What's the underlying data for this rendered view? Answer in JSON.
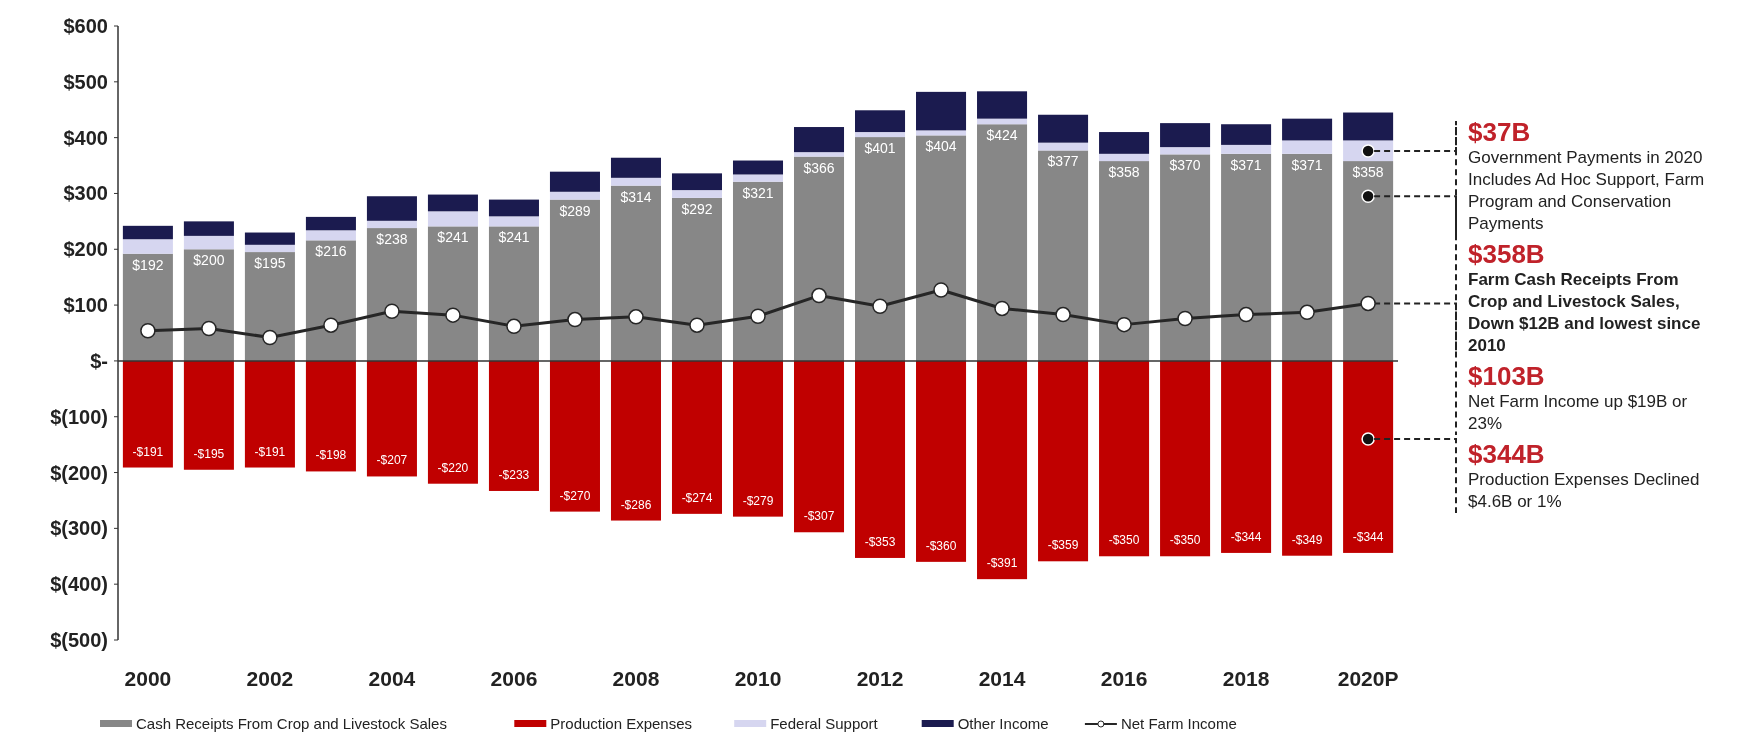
{
  "chart_data": {
    "type": "bar",
    "stacked": true,
    "categories": [
      "2000",
      null,
      "2002",
      null,
      "2004",
      null,
      "2006",
      null,
      "2008",
      null,
      "2010",
      null,
      "2012",
      null,
      "2014",
      null,
      "2016",
      null,
      "2018",
      null,
      "2020P"
    ],
    "series": [
      {
        "name": "Cash Receipts From Crop and Livestock Sales",
        "color": "#878787",
        "values": [
          192,
          200,
          195,
          216,
          238,
          241,
          241,
          289,
          314,
          292,
          321,
          366,
          401,
          404,
          424,
          377,
          358,
          370,
          371,
          371,
          358
        ],
        "value_labels": [
          "$192",
          "$200",
          "$195",
          "$216",
          "$238",
          "$241",
          "$241",
          "$289",
          "$314",
          "$292",
          "$321",
          "$366",
          "$401",
          "$404",
          "$424",
          "$377",
          "$358",
          "$370",
          "$371",
          "$371",
          "$358"
        ]
      },
      {
        "name": "Production Expenses",
        "color": "#c00000",
        "values": [
          -191,
          -195,
          -191,
          -198,
          -207,
          -220,
          -233,
          -270,
          -286,
          -274,
          -279,
          -307,
          -353,
          -360,
          -391,
          -359,
          -350,
          -350,
          -344,
          -349,
          -344
        ],
        "value_labels": [
          "-$191",
          "-$195",
          "-$191",
          "-$198",
          "-$207",
          "-$220",
          "-$233",
          "-$270",
          "-$286",
          "-$274",
          "-$279",
          "-$307",
          "-$353",
          "-$360",
          "-$391",
          "-$359",
          "-$350",
          "-$350",
          "-$344",
          "-$349",
          "-$344"
        ]
      },
      {
        "name": "Federal Support",
        "color": "#d6d6f0",
        "values": [
          26,
          24,
          13,
          18,
          13,
          27,
          18,
          14,
          14,
          14,
          13,
          8,
          9,
          9,
          10,
          14,
          13,
          13,
          16,
          24,
          37
        ]
      },
      {
        "name": "Other Income",
        "color": "#1b1b4f",
        "values": [
          24,
          26,
          22,
          24,
          44,
          30,
          30,
          36,
          36,
          30,
          25,
          45,
          39,
          69,
          49,
          50,
          39,
          43,
          37,
          39,
          50
        ]
      },
      {
        "name": "Net Farm Income",
        "type": "line",
        "color": "#262626",
        "marker": "circle",
        "values": [
          54,
          58,
          42,
          64,
          89,
          82,
          62,
          74,
          79,
          64,
          80,
          117,
          98,
          127,
          94,
          83,
          65,
          76,
          83,
          87,
          103
        ]
      }
    ],
    "ylim": [
      -500,
      600
    ],
    "yticks": [
      {
        "value": -500,
        "label": "$(500)"
      },
      {
        "value": -400,
        "label": "$(400)"
      },
      {
        "value": -300,
        "label": "$(300)"
      },
      {
        "value": -200,
        "label": "$(200)"
      },
      {
        "value": -100,
        "label": "$(100)"
      },
      {
        "value": 0,
        "label": "$-"
      },
      {
        "value": 100,
        "label": "$100"
      },
      {
        "value": 200,
        "label": "$200"
      },
      {
        "value": 300,
        "label": "$300"
      },
      {
        "value": 400,
        "label": "$400"
      },
      {
        "value": 500,
        "label": "$500"
      },
      {
        "value": 600,
        "label": "$600"
      }
    ],
    "legend": "bottom",
    "annotations": [
      {
        "text": "$37B\nGovernment Payments in 2020\nIncludes Ad Hoc Support, Farm\nProgram and Conservation\nPayments",
        "x": "2020P",
        "y": 376
      },
      {
        "text": "$358B\nFarm Cash Receipts From\nCrop and Livestock Sales,\nDown $12B and lowest since\n2010",
        "x": "2020P",
        "y": 295
      },
      {
        "text": "$103B\nNet Farm Income up $19B or\n23%",
        "x": "2020P",
        "y": 103
      },
      {
        "text": "$344B\nProduction Expenses Declined\n$4.6B or 1%",
        "x": "2020P",
        "y": -140
      }
    ]
  }
}
